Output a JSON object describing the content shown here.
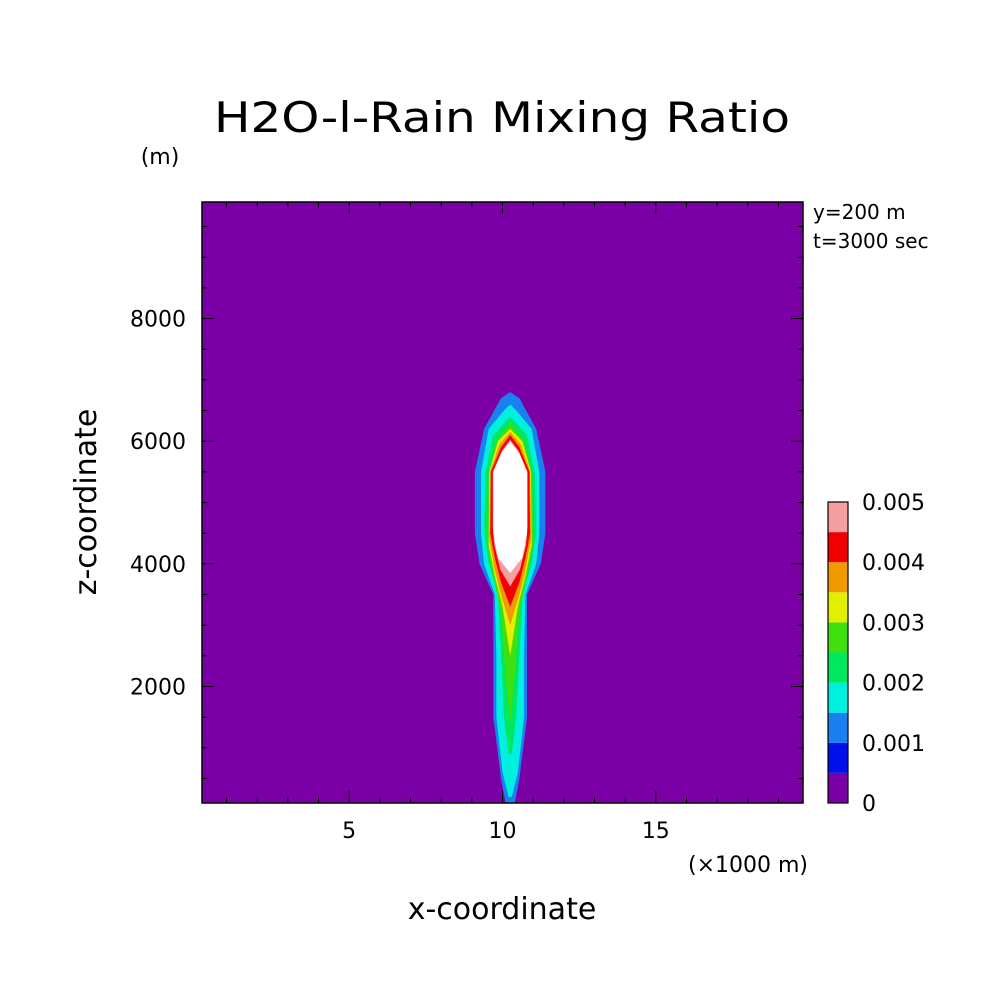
{
  "chart_data": {
    "type": "heatmap",
    "title": "H2O-l-Rain Mixing Ratio",
    "ylabel": "z-coordinate",
    "xlabel": "x-coordinate",
    "y_unit": "(m)",
    "x_unit": "(×1000 m)",
    "annotations": [
      "y=200 m",
      "t=3000 sec"
    ],
    "xlim": [
      0.2,
      19.8
    ],
    "ylim": [
      100,
      9900
    ],
    "x_ticks": [
      5,
      10,
      15
    ],
    "x_tick_labels": [
      "5",
      "10",
      "15"
    ],
    "y_ticks": [
      2000,
      4000,
      6000,
      8000
    ],
    "y_tick_labels": [
      "2000",
      "4000",
      "6000",
      "8000"
    ],
    "colorbar": {
      "levels": [
        0,
        0.0005,
        0.001,
        0.0015,
        0.002,
        0.0025,
        0.003,
        0.0035,
        0.004,
        0.0045,
        0.005
      ],
      "tick_labels": [
        "0",
        "0.001",
        "0.002",
        "0.003",
        "0.004",
        "0.005"
      ],
      "tick_values": [
        0,
        0.001,
        0.002,
        0.003,
        0.004,
        0.005
      ],
      "colors": [
        "#7a00a6",
        "#0010e8",
        "#1a80f0",
        "#00f0e0",
        "#00e860",
        "#40e010",
        "#e0f000",
        "#f09a00",
        "#f00000",
        "#f4a0a0"
      ],
      "above_color": "#ffffff"
    },
    "background_color": "#7a00a6",
    "field": {
      "description_of_plume": "narrow vertical rain column centered near x=10.2 km",
      "center_x_km": 10.25,
      "contour_profiles": [
        {
          "level": 0.0005,
          "z": [
            100,
            500,
            1500,
            2500,
            3500,
            4000,
            4500,
            5500,
            6200,
            6700,
            6800
          ],
          "halfwidth_km": [
            0.15,
            0.3,
            0.55,
            0.55,
            0.55,
            1.0,
            1.15,
            1.15,
            0.85,
            0.3,
            0.0
          ]
        },
        {
          "level": 0.001,
          "z": [
            200,
            600,
            1500,
            2500,
            3500,
            4000,
            4500,
            5500,
            6200,
            6500,
            6600
          ],
          "halfwidth_km": [
            0.05,
            0.25,
            0.45,
            0.45,
            0.5,
            0.85,
            0.95,
            0.95,
            0.7,
            0.2,
            0.0
          ]
        },
        {
          "level": 0.0015,
          "z": [
            900,
            1500,
            2500,
            3500,
            4000,
            4500,
            5500,
            6100,
            6400
          ],
          "halfwidth_km": [
            0.05,
            0.2,
            0.3,
            0.4,
            0.7,
            0.85,
            0.8,
            0.55,
            0.0
          ]
        },
        {
          "level": 0.002,
          "z": [
            1400,
            2200,
            3200,
            3800,
            4300,
            5500,
            6000,
            6300
          ],
          "halfwidth_km": [
            0.0,
            0.15,
            0.3,
            0.55,
            0.75,
            0.7,
            0.45,
            0.0
          ]
        },
        {
          "level": 0.0025,
          "z": [
            2500,
            3300,
            3800,
            4300,
            5500,
            6000,
            6200
          ],
          "halfwidth_km": [
            0.0,
            0.25,
            0.5,
            0.7,
            0.68,
            0.4,
            0.0
          ]
        },
        {
          "level": 0.003,
          "z": [
            3000,
            3500,
            3900,
            4400,
            5500,
            5950,
            6150
          ],
          "halfwidth_km": [
            0.0,
            0.3,
            0.5,
            0.68,
            0.65,
            0.35,
            0.0
          ]
        },
        {
          "level": 0.0035,
          "z": [
            3300,
            3700,
            4100,
            4500,
            5500,
            5900,
            6100
          ],
          "halfwidth_km": [
            0.0,
            0.3,
            0.5,
            0.65,
            0.62,
            0.3,
            0.0
          ]
        },
        {
          "level": 0.004,
          "z": [
            3600,
            3900,
            4300,
            4600,
            5500,
            5850,
            6050
          ],
          "halfwidth_km": [
            0.0,
            0.35,
            0.55,
            0.6,
            0.6,
            0.3,
            0.0
          ]
        },
        {
          "level": 0.0045,
          "z": [
            3850,
            4100,
            4500,
            5500,
            5800,
            6000
          ],
          "halfwidth_km": [
            0.0,
            0.4,
            0.55,
            0.55,
            0.3,
            0.0
          ]
        },
        {
          "level": 0.005,
          "z": [
            3950,
            4150,
            4550,
            5500,
            5780,
            5950
          ],
          "halfwidth_km": [
            0.0,
            0.3,
            0.5,
            0.5,
            0.25,
            0.0
          ]
        }
      ]
    }
  }
}
